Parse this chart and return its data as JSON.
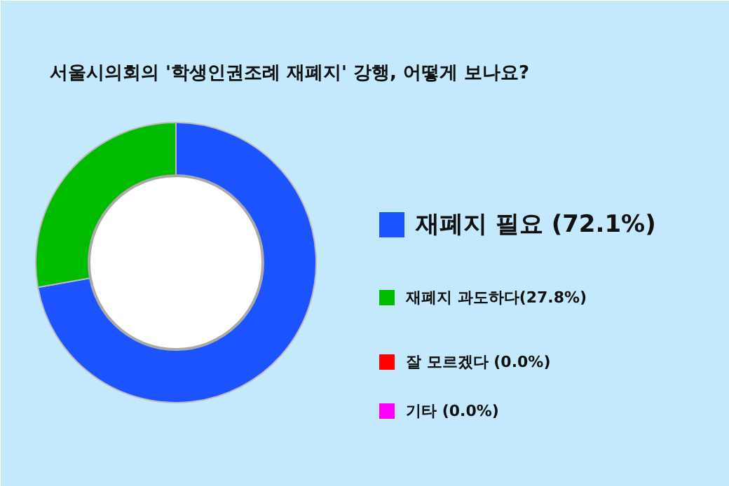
{
  "chart_data": {
    "type": "donut",
    "title": "서울시의회의 '학생인권조례 재폐지' 강행, 어떻게 보나요?",
    "categories": [
      "재폐지 필요 (72.1%)",
      "재폐지 과도하다(27.8%)",
      "잘 모르겠다 (0.0%)",
      "기타 (0.0%)"
    ],
    "values": [
      72.1,
      27.8,
      0.0,
      0.0
    ],
    "colors": [
      "#1a53ff",
      "#00bb00",
      "#ff0000",
      "#ff00ff"
    ],
    "legend": "right"
  }
}
